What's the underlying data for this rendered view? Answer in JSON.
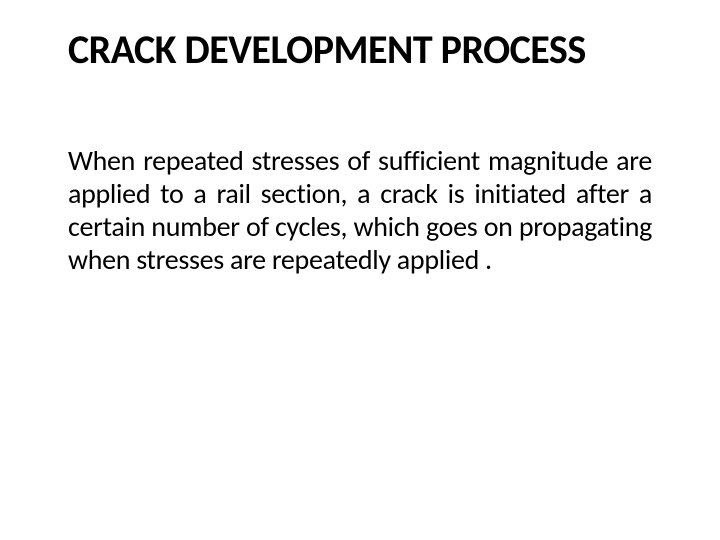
{
  "slide": {
    "title": "CRACK DEVELOPMENT PROCESS",
    "body": "When repeated stresses of sufficient magnitude are applied to a rail section, a crack is initiated after a certain number of cycles, which goes on propagating when stresses are repeatedly applied .",
    "background_color": "#ffffff",
    "text_color": "#000000",
    "title_fontsize": 40,
    "title_weight": 700,
    "body_fontsize": 28,
    "body_weight": 400,
    "font_family": "Calibri"
  }
}
